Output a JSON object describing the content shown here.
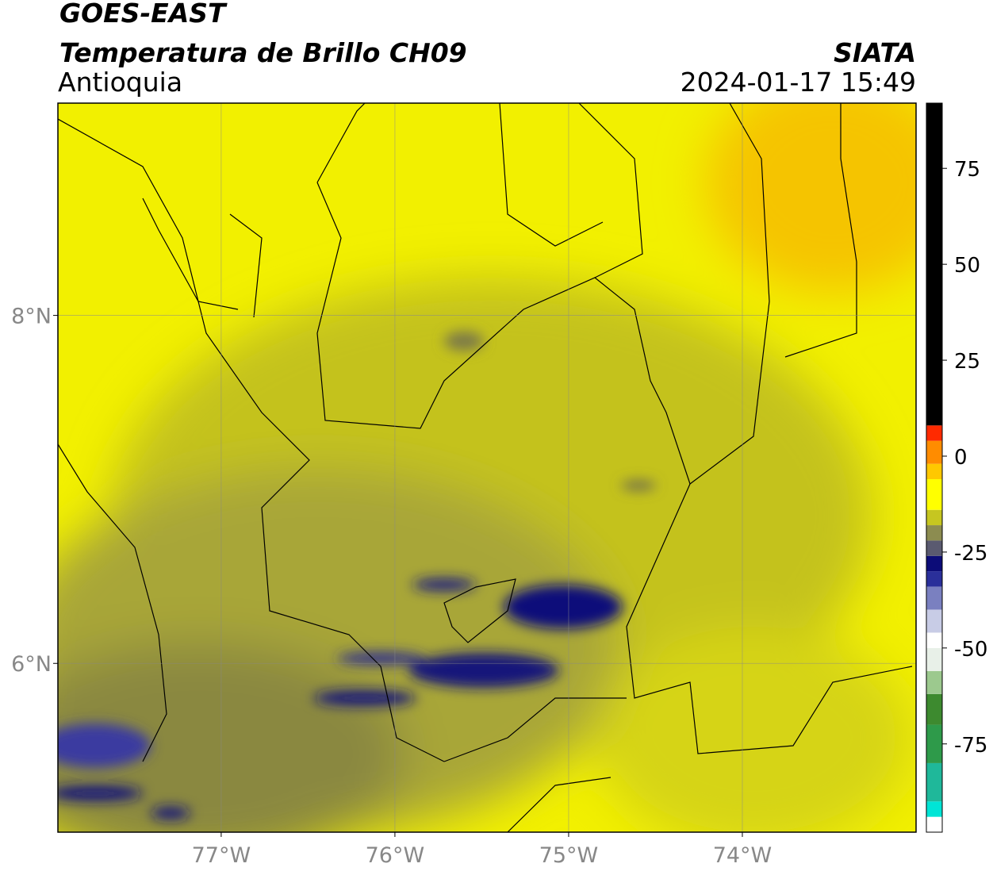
{
  "header": {
    "title": "GOES-EAST",
    "subtitle": "Temperatura de Brillo CH09",
    "region": "Antioquia",
    "source": "SIATA",
    "timestamp": "2024-01-17 15:49"
  },
  "map": {
    "xlim": [
      -77.94,
      -73.0
    ],
    "ylim": [
      5.03,
      9.22
    ],
    "xticks": [
      {
        "value": -77,
        "label": "77°W"
      },
      {
        "value": -76,
        "label": "76°W"
      },
      {
        "value": -75,
        "label": "75°W"
      },
      {
        "value": -74,
        "label": "74°W"
      }
    ],
    "yticks": [
      {
        "value": 6,
        "label": "6°N"
      },
      {
        "value": 8,
        "label": "8°N"
      }
    ],
    "grid": true
  },
  "colorbar": {
    "lim": [
      -98,
      92
    ],
    "ticks": [
      75,
      50,
      25,
      0,
      -25,
      -50,
      -75
    ],
    "stops": [
      {
        "value": -98,
        "color": "#ffffff"
      },
      {
        "value": -94,
        "color": "#00e5d6"
      },
      {
        "value": -90,
        "color": "#1fb89a"
      },
      {
        "value": -80,
        "color": "#2e9a4a"
      },
      {
        "value": -70,
        "color": "#3d8a2f"
      },
      {
        "value": -62,
        "color": "#9cc98e"
      },
      {
        "value": -56,
        "color": "#e8f0e8"
      },
      {
        "value": -50,
        "color": "#ffffff"
      },
      {
        "value": -46,
        "color": "#c8cce6"
      },
      {
        "value": -40,
        "color": "#7a80c0"
      },
      {
        "value": -34,
        "color": "#2a2f9a"
      },
      {
        "value": -30,
        "color": "#0c0c78"
      },
      {
        "value": -26,
        "color": "#5a5a70"
      },
      {
        "value": -22,
        "color": "#8c8c50"
      },
      {
        "value": -18,
        "color": "#c6c620"
      },
      {
        "value": -14,
        "color": "#ffff00"
      },
      {
        "value": -6,
        "color": "#ffc800"
      },
      {
        "value": -2,
        "color": "#ff8c00"
      },
      {
        "value": 4,
        "color": "#ff2a00"
      },
      {
        "value": 8,
        "color": "#000000"
      }
    ]
  }
}
